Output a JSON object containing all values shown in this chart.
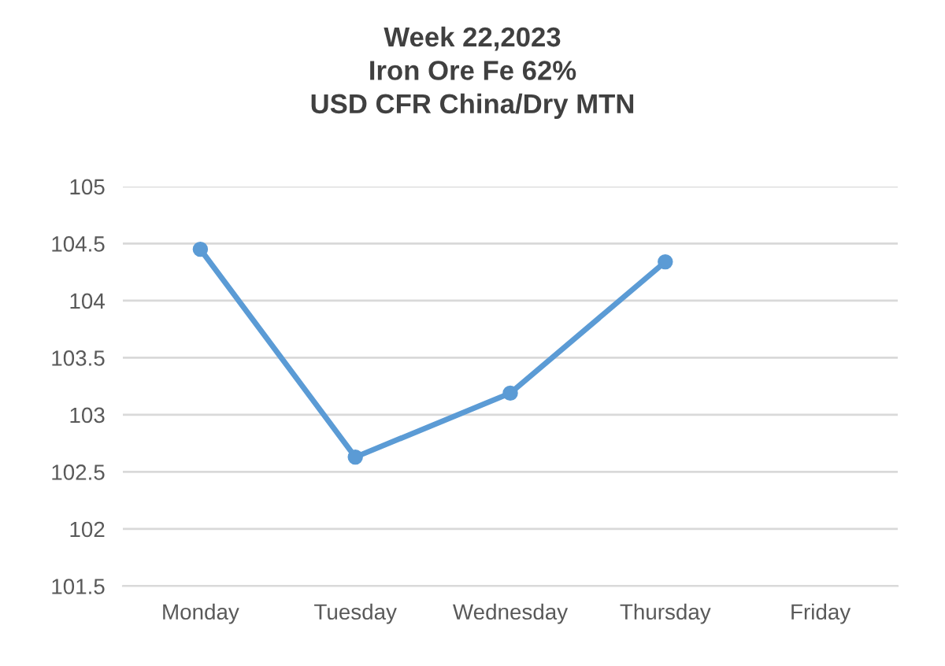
{
  "chart_data": {
    "type": "line",
    "title": "Week 22,2023\nIron Ore Fe 62%\nUSD CFR China/Dry MTN",
    "categories": [
      "Monday",
      "Tuesday",
      "Wednesday",
      "Thursday",
      "Friday"
    ],
    "series": [
      {
        "color": "#5b9bd5",
        "values": [
          104.45,
          102.63,
          103.19,
          104.34,
          null
        ]
      }
    ],
    "ylim": [
      101.5,
      105
    ],
    "yticks": [
      101.5,
      102,
      102.5,
      103,
      103.5,
      104,
      104.5,
      105
    ],
    "grid": "y",
    "marker": "circle",
    "line_style": "solid"
  }
}
